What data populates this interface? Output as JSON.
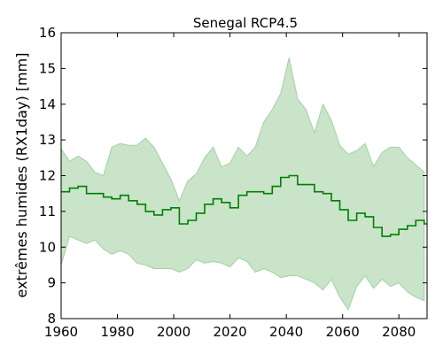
{
  "chart_data": {
    "type": "area",
    "title": "Senegal  RCP4.5",
    "xlabel": "",
    "ylabel": "extrêmes humides (RX1day) [mm]",
    "xlim": [
      1960,
      2090
    ],
    "ylim": [
      8,
      16
    ],
    "xticks": [
      "1960",
      "1980",
      "2000",
      "2020",
      "2040",
      "2060",
      "2080"
    ],
    "yticks": [
      "8",
      "9",
      "10",
      "11",
      "12",
      "13",
      "14",
      "15",
      "16"
    ],
    "grid": false,
    "colors": {
      "median": "#007f00",
      "band": "#c9e4c9",
      "band_edge": "#a3d1a3"
    },
    "x": [
      1960,
      1963,
      1966,
      1969,
      1972,
      1975,
      1978,
      1981,
      1984,
      1987,
      1990,
      1993,
      1996,
      1999,
      2002,
      2005,
      2008,
      2011,
      2014,
      2017,
      2020,
      2023,
      2026,
      2029,
      2032,
      2035,
      2038,
      2041,
      2044,
      2047,
      2050,
      2053,
      2056,
      2059,
      2062,
      2065,
      2068,
      2071,
      2074,
      2077,
      2080,
      2083,
      2086,
      2089
    ],
    "series": [
      {
        "role": "median",
        "values": [
          11.55,
          11.65,
          11.7,
          11.5,
          11.5,
          11.4,
          11.35,
          11.45,
          11.3,
          11.2,
          11.0,
          10.9,
          11.05,
          11.1,
          10.65,
          10.75,
          10.95,
          11.2,
          11.35,
          11.25,
          11.1,
          11.45,
          11.55,
          11.55,
          11.5,
          11.7,
          11.95,
          12.0,
          11.75,
          11.75,
          11.55,
          11.5,
          11.3,
          11.05,
          10.75,
          10.95,
          10.85,
          10.55,
          10.3,
          10.35,
          10.5,
          10.6,
          10.75,
          10.65
        ]
      },
      {
        "role": "upper",
        "values": [
          12.75,
          12.4,
          12.55,
          12.4,
          12.1,
          12.0,
          12.8,
          12.9,
          12.85,
          12.85,
          13.05,
          12.8,
          12.35,
          11.9,
          11.3,
          11.85,
          12.05,
          12.5,
          12.8,
          12.25,
          12.35,
          12.8,
          12.55,
          12.8,
          13.5,
          13.85,
          14.3,
          15.3,
          14.15,
          13.85,
          13.2,
          14.0,
          13.55,
          12.85,
          12.6,
          12.7,
          12.9,
          12.25,
          12.65,
          12.8,
          12.8,
          12.5,
          12.3,
          12.1
        ]
      },
      {
        "role": "lower",
        "values": [
          9.5,
          10.3,
          10.2,
          10.1,
          10.2,
          9.95,
          9.8,
          9.9,
          9.8,
          9.55,
          9.5,
          9.4,
          9.4,
          9.4,
          9.3,
          9.4,
          9.65,
          9.55,
          9.6,
          9.55,
          9.45,
          9.7,
          9.6,
          9.3,
          9.4,
          9.3,
          9.15,
          9.2,
          9.2,
          9.1,
          9.0,
          8.8,
          9.1,
          8.6,
          8.25,
          8.9,
          9.2,
          8.85,
          9.1,
          8.9,
          9.0,
          8.75,
          8.6,
          8.5
        ]
      }
    ]
  }
}
